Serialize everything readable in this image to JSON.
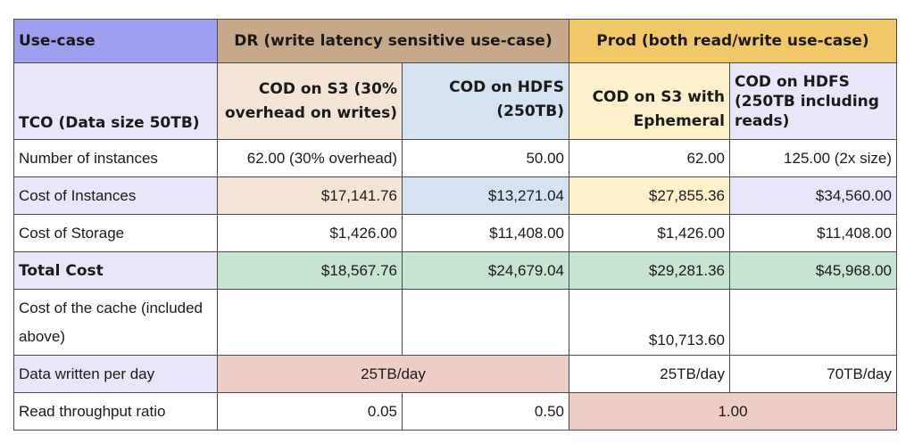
{
  "header": {
    "use_case": "Use-case",
    "dr": "DR (write latency sensitive use-case)",
    "prod": "Prod (both read/write use-case)"
  },
  "subheader": {
    "tco": "TCO (Data size 50TB)",
    "dr_s3": "COD on S3 (30% overhead on writes)",
    "dr_hdfs": "COD on HDFS (250TB)",
    "prod_s3": "COD on S3 with Ephemeral",
    "prod_hdfs": "COD on HDFS (250TB including reads)"
  },
  "rows": {
    "instances": {
      "label": "Number of instances",
      "dr_s3": "62.00 (30% overhead)",
      "dr_hdfs": "50.00",
      "prod_s3": "62.00",
      "prod_hdfs": "125.00 (2x size)"
    },
    "cost_instances": {
      "label": "Cost of Instances",
      "dr_s3": "$17,141.76",
      "dr_hdfs": "$13,271.04",
      "prod_s3": "$27,855.36",
      "prod_hdfs": "$34,560.00"
    },
    "cost_storage": {
      "label": "Cost of Storage",
      "dr_s3": "$1,426.00",
      "dr_hdfs": "$11,408.00",
      "prod_s3": "$1,426.00",
      "prod_hdfs": "$11,408.00"
    },
    "total": {
      "label": "Total Cost",
      "dr_s3": "$18,567.76",
      "dr_hdfs": "$24,679.04",
      "prod_s3": "$29,281.36",
      "prod_hdfs": "$45,968.00"
    },
    "cache": {
      "label": "Cost of the cache (included above)",
      "dr_s3": "",
      "dr_hdfs": "",
      "prod_s3": "$10,713.60",
      "prod_hdfs": ""
    },
    "written": {
      "label": "Data written per day",
      "dr": "25TB/day",
      "prod_s3": "25TB/day",
      "prod_hdfs": "70TB/day"
    },
    "read_ratio": {
      "label": "Read throughput ratio",
      "dr_s3": "0.05",
      "dr_hdfs": "0.50",
      "prod": "1.00"
    }
  },
  "colors": {
    "use_case_header": "#9f9ff0",
    "dr_header": "#c7a98a",
    "prod_header": "#f1c867",
    "label_lavender": "#e8e6f9",
    "dr_s3_cell": "#f4e4d6",
    "dr_hdfs_cell": "#d5e2f1",
    "prod_s3_cell": "#fdf1cc",
    "total_row": "#c5e4d2",
    "highlight_pink": "#efcdc7"
  }
}
